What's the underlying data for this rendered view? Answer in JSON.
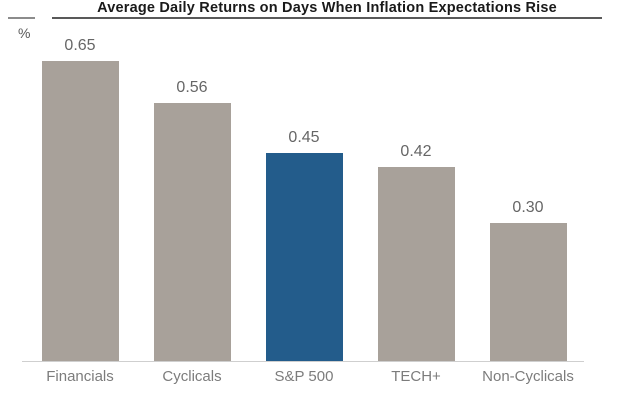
{
  "header": {
    "title": "Average Daily Returns on Days When Inflation Expectations Rise",
    "y_axis_unit": "%"
  },
  "chart_data": {
    "type": "bar",
    "title": "Average Daily Returns on Days When Inflation Expectations Rise",
    "categories": [
      "Financials",
      "Cyclicals",
      "S&P 500",
      "TECH+",
      "Non-Cyclicals"
    ],
    "values": [
      0.65,
      0.56,
      0.45,
      0.42,
      0.3
    ],
    "value_labels": [
      "0.65",
      "0.56",
      "0.45",
      "0.42",
      "0.30"
    ],
    "xlabel": "",
    "ylabel": "%",
    "ylim": [
      0,
      0.7
    ],
    "grid": false,
    "legend": "none",
    "highlight_index": 2,
    "colors": {
      "default_bar": "#a8a19a",
      "highlight_bar": "#235c8b",
      "value_label": "#666666",
      "category_label": "#7c7c7c",
      "axis_line": "#cfcfcf",
      "title_text": "#1a1a1a",
      "title_rule": "#595959"
    }
  }
}
